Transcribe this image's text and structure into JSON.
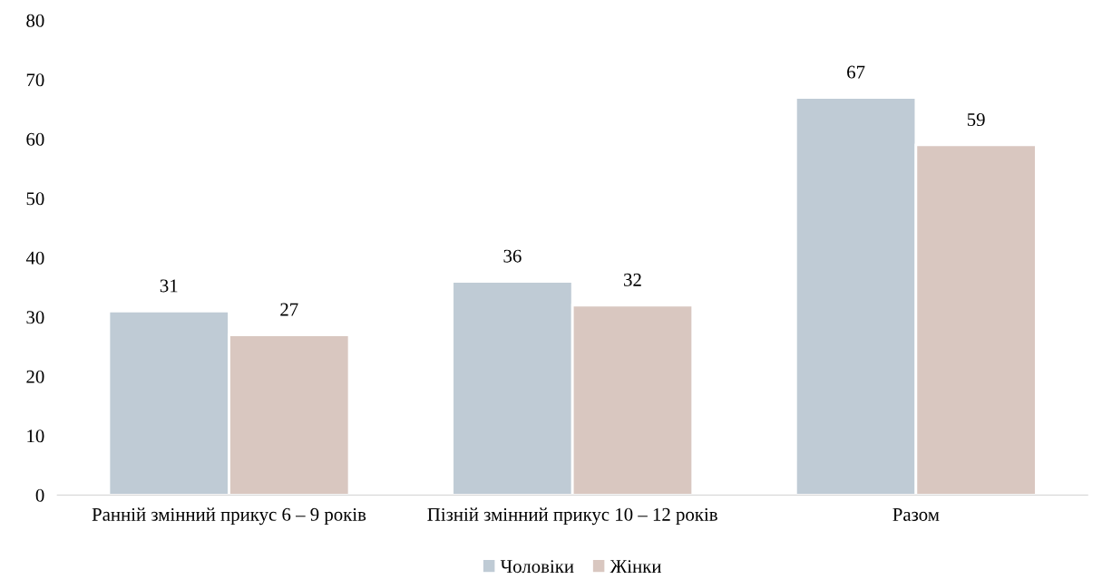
{
  "chart_data": {
    "type": "bar",
    "categories": [
      "Ранній змінний прикус 6 – 9 років",
      "Пізній змінний прикус 10 – 12 років",
      "Разом"
    ],
    "series": [
      {
        "name": "Чоловіки",
        "color": "#bfcbd5",
        "values": [
          31,
          36,
          67
        ]
      },
      {
        "name": "Жінки",
        "color": "#d9c7c0",
        "values": [
          27,
          32,
          59
        ]
      }
    ],
    "ylim": [
      0,
      80
    ],
    "yticks": [
      0,
      10,
      20,
      30,
      40,
      50,
      60,
      70,
      80
    ],
    "data_labels": true,
    "grid": false,
    "legend": "bottom"
  }
}
